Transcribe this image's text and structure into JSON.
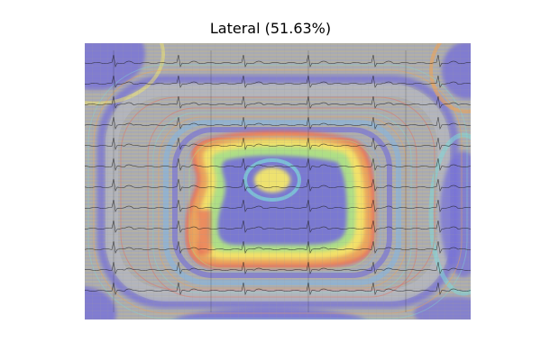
{
  "figure": {
    "title": "Lateral (51.63%)"
  },
  "image_panel": {
    "content": "ecg-heatmap-overlay",
    "colormap": "jet",
    "accent_colors": {
      "dark_blue": "#7570d8",
      "light_blue": "#7fb6e8",
      "cyan": "#7ed8d8",
      "green": "#a6df8a",
      "yellow": "#f4e86a",
      "orange": "#f4a24f",
      "red": "#e86a5a",
      "ecg_trace": "#1a1a1a",
      "grid_line": "#b5b5b5"
    }
  }
}
